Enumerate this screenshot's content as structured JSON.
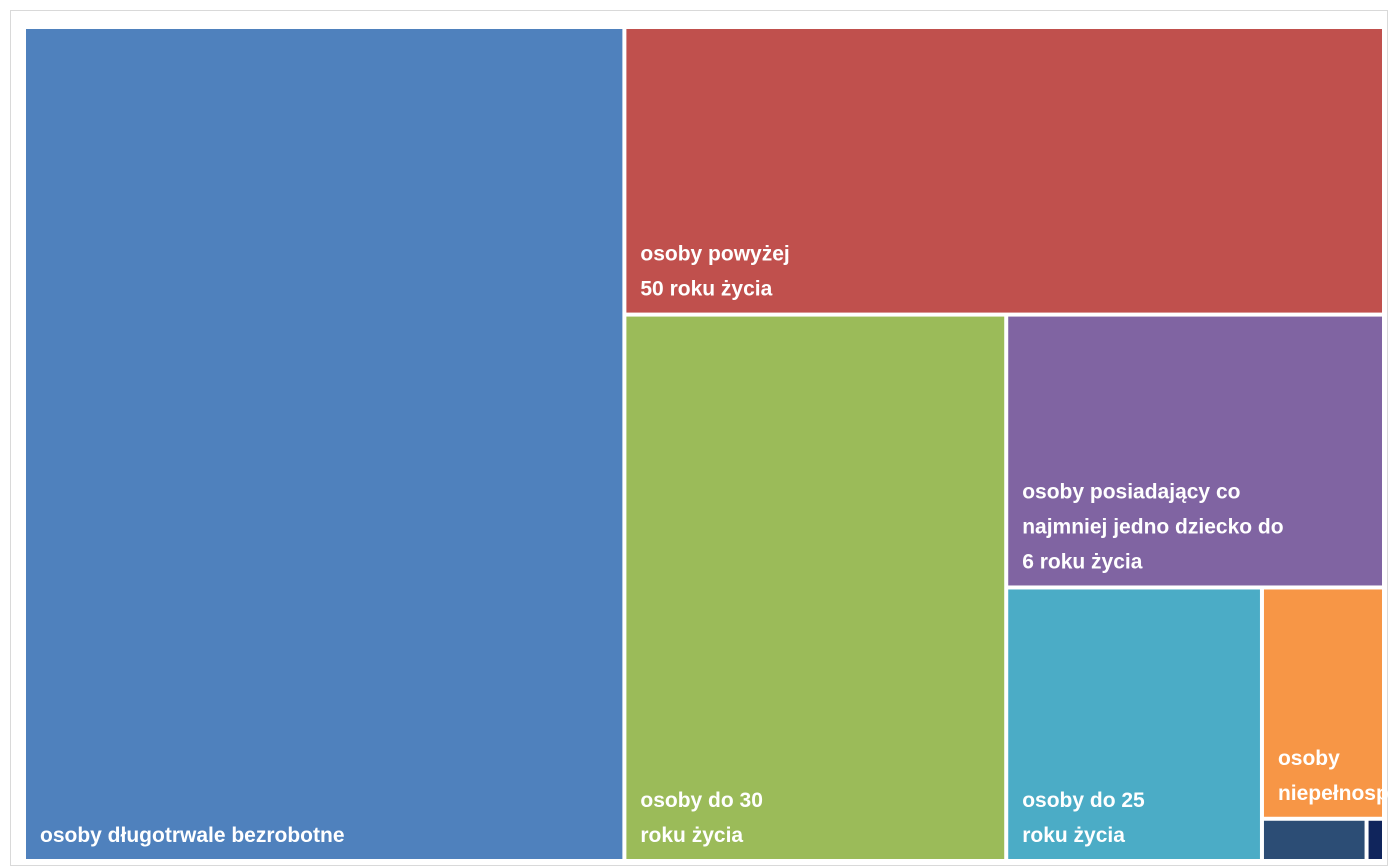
{
  "chart_data": {
    "type": "treemap",
    "series": [
      {
        "name": "osoby długotrwale bezrobotne",
        "label_lines": [
          "osoby długotrwale bezrobotne"
        ],
        "value": 408,
        "color": "#4F81BD"
      },
      {
        "name": "osoby powyżej 50 roku życia",
        "label_lines": [
          "osoby powyżej",
          "50 roku życia"
        ],
        "value": 178,
        "color": "#C0504D"
      },
      {
        "name": "osoby do 30 roku życia",
        "label_lines": [
          "osoby do 30",
          "roku życia"
        ],
        "value": 170,
        "color": "#9BBB59"
      },
      {
        "name": "osoby posiadający co najmniej jedno dziecko do 6 roku życia",
        "label_lines": [
          "osoby posiadający co",
          "najmniej jedno dziecko do",
          "6 roku życia"
        ],
        "value": 84,
        "color": "#8064A2"
      },
      {
        "name": "osoby do 25 roku życia",
        "label_lines": [
          "osoby do 25",
          "roku życia"
        ],
        "value": 57,
        "color": "#4BACC6"
      },
      {
        "name": "osoby niepełnosprawne",
        "label_lines": [
          "osoby",
          "niepełnosprawne"
        ],
        "value": 23,
        "color": "#F79646"
      },
      {
        "name": "",
        "label_lines": [],
        "value": 3.6,
        "color": "#2C4D75"
      },
      {
        "name": "",
        "label_lines": [],
        "value": 0.6,
        "color": "#10255C"
      }
    ]
  }
}
